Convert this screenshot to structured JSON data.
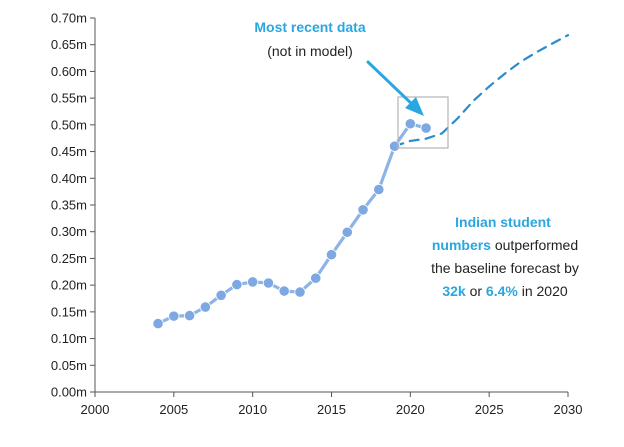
{
  "chart_data": {
    "type": "line",
    "title": "",
    "xlabel": "",
    "ylabel": "",
    "xlim": [
      2000,
      2030
    ],
    "ylim": [
      0,
      0.7
    ],
    "x_ticks": [
      2000,
      2005,
      2010,
      2015,
      2020,
      2025,
      2030
    ],
    "x_tick_labels": [
      "2000",
      "2005",
      "2010",
      "2015",
      "2020",
      "2025",
      "2030"
    ],
    "y_ticks": [
      0,
      0.05,
      0.1,
      0.15,
      0.2,
      0.25,
      0.3,
      0.35,
      0.4,
      0.45,
      0.5,
      0.55,
      0.6,
      0.65,
      0.7
    ],
    "y_tick_labels": [
      "0.00m",
      "0.05m",
      "0.10m",
      "0.15m",
      "0.20m",
      "0.25m",
      "0.30m",
      "0.35m",
      "0.40m",
      "0.45m",
      "0.50m",
      "0.55m",
      "0.60m",
      "0.65m",
      "0.70m"
    ],
    "grid": false,
    "legend": "none",
    "series": [
      {
        "style": "solid-with-markers",
        "color": "#8db4e8",
        "x": [
          2004,
          2005,
          2006,
          2007,
          2008,
          2009,
          2010,
          2011,
          2012,
          2013,
          2014,
          2015,
          2016,
          2017,
          2018,
          2019,
          2020,
          2021
        ],
        "y": [
          0.128,
          0.142,
          0.143,
          0.159,
          0.181,
          0.201,
          0.206,
          0.204,
          0.189,
          0.187,
          0.213,
          0.257,
          0.299,
          0.341,
          0.379,
          0.46,
          0.502,
          0.494
        ]
      },
      {
        "style": "dashed",
        "color": "#2a8bd0",
        "x": [
          2019,
          2020,
          2021,
          2022,
          2023,
          2024,
          2025,
          2026,
          2027,
          2028,
          2029,
          2030
        ],
        "y": [
          0.46,
          0.47,
          0.474,
          0.484,
          0.512,
          0.545,
          0.572,
          0.596,
          0.618,
          0.636,
          0.652,
          0.668
        ]
      }
    ],
    "annotations": {
      "callout_title": "Most recent data",
      "callout_subtitle": "(not in model)",
      "note_line1_highlight": "Indian student",
      "note_line2_highlight": "numbers",
      "note_line2_rest": " outperformed",
      "note_line3": "the baseline forecast by",
      "note_value_1": "32k",
      "note_connector": " or ",
      "note_value_2": "6.4%",
      "note_tail": " in 2020"
    },
    "colors": {
      "accent": "#2aa6e0",
      "actual_line": "#8db4e8",
      "actual_marker": "#7ea8e2",
      "forecast_line": "#2a8bd0",
      "box": "#b5b5b5",
      "axis": "#555555",
      "text": "#222222"
    }
  }
}
